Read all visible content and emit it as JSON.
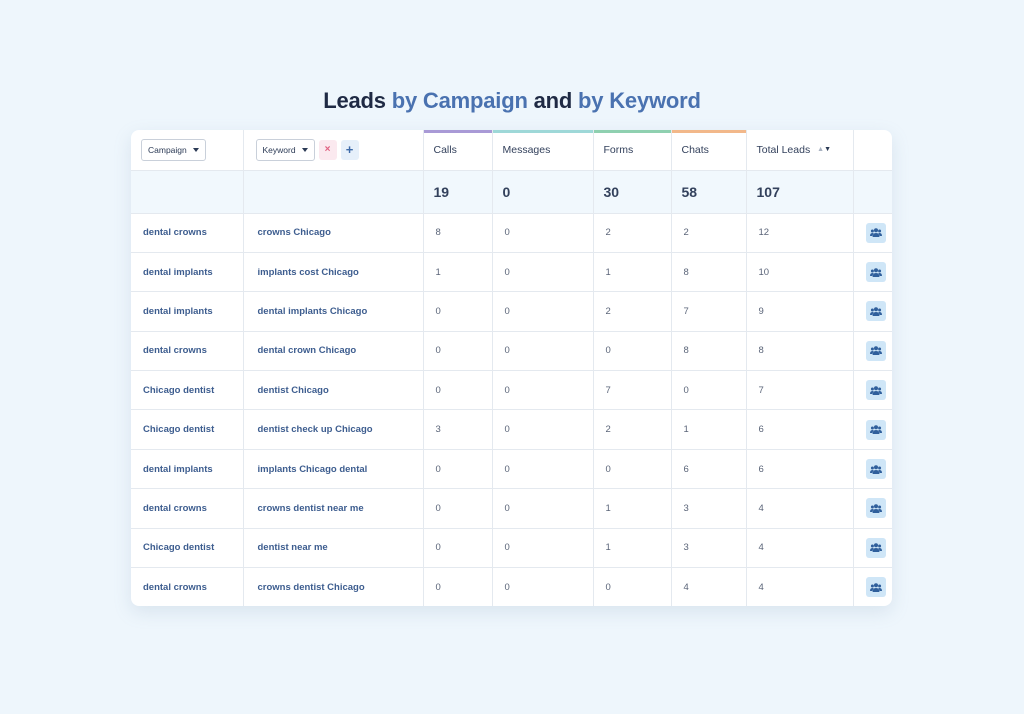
{
  "title": {
    "part1": "Leads ",
    "part2": "by Campaign",
    "part3": " and ",
    "part4": "by Keyword"
  },
  "filters": {
    "campaign_label": "Campaign",
    "keyword_label": "Keyword",
    "remove_symbol": "×",
    "add_symbol": "+"
  },
  "columns": {
    "calls": "Calls",
    "messages": "Messages",
    "forms": "Forms",
    "chats": "Chats",
    "total": "Total Leads"
  },
  "column_colors": {
    "calls": "#a99ad6",
    "messages": "#9ed8d8",
    "forms": "#8fd0b0",
    "chats": "#f2b88a"
  },
  "totals": {
    "calls": "19",
    "messages": "0",
    "forms": "30",
    "chats": "58",
    "total": "107"
  },
  "row_icon": "users-icon",
  "rows": [
    {
      "campaign": "dental crowns",
      "keyword": "crowns Chicago",
      "calls": "8",
      "messages": "0",
      "forms": "2",
      "chats": "2",
      "total": "12"
    },
    {
      "campaign": "dental implants",
      "keyword": "implants cost Chicago",
      "calls": "1",
      "messages": "0",
      "forms": "1",
      "chats": "8",
      "total": "10"
    },
    {
      "campaign": "dental implants",
      "keyword": "dental implants Chicago",
      "calls": "0",
      "messages": "0",
      "forms": "2",
      "chats": "7",
      "total": "9"
    },
    {
      "campaign": "dental crowns",
      "keyword": "dental crown Chicago",
      "calls": "0",
      "messages": "0",
      "forms": "0",
      "chats": "8",
      "total": "8"
    },
    {
      "campaign": "Chicago dentist",
      "keyword": "dentist Chicago",
      "calls": "0",
      "messages": "0",
      "forms": "7",
      "chats": "0",
      "total": "7"
    },
    {
      "campaign": "Chicago dentist",
      "keyword": "dentist check up Chicago",
      "calls": "3",
      "messages": "0",
      "forms": "2",
      "chats": "1",
      "total": "6"
    },
    {
      "campaign": "dental implants",
      "keyword": "implants Chicago dental",
      "calls": "0",
      "messages": "0",
      "forms": "0",
      "chats": "6",
      "total": "6"
    },
    {
      "campaign": "dental crowns",
      "keyword": "crowns dentist near me",
      "calls": "0",
      "messages": "0",
      "forms": "1",
      "chats": "3",
      "total": "4"
    },
    {
      "campaign": "Chicago dentist",
      "keyword": "dentist near me",
      "calls": "0",
      "messages": "0",
      "forms": "1",
      "chats": "3",
      "total": "4"
    },
    {
      "campaign": "dental crowns",
      "keyword": "crowns dentist Chicago",
      "calls": "0",
      "messages": "0",
      "forms": "0",
      "chats": "4",
      "total": "4"
    }
  ]
}
